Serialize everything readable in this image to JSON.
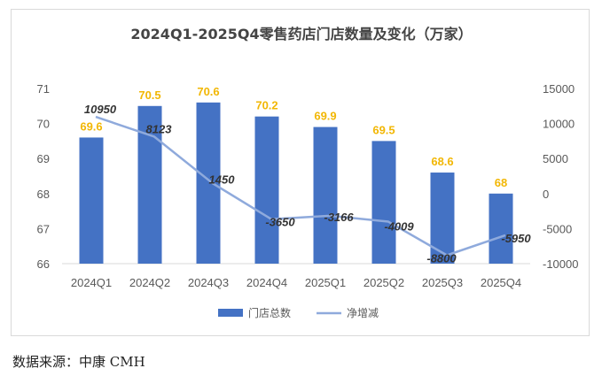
{
  "chart_data": {
    "type": "bar",
    "title": "2024Q1-2025Q4零售药店门店数量及变化（万家）",
    "categories": [
      "2024Q1",
      "2024Q2",
      "2024Q3",
      "2024Q4",
      "2025Q1",
      "2025Q2",
      "2025Q3",
      "2025Q4"
    ],
    "series": [
      {
        "name": "门店总数",
        "type": "bar",
        "axis": "left",
        "color": "#4472c4",
        "values": [
          69.6,
          70.5,
          70.6,
          70.2,
          69.9,
          69.5,
          68.6,
          68
        ]
      },
      {
        "name": "净增减",
        "type": "line",
        "axis": "right",
        "color": "#8faadc",
        "values": [
          10950,
          8123,
          1450,
          -3650,
          -3166,
          -4009,
          -8800,
          -5950
        ]
      }
    ],
    "y_left": {
      "min": 66,
      "max": 71,
      "ticks": [
        66,
        67,
        68,
        69,
        70,
        71
      ]
    },
    "y_right": {
      "min": -10000,
      "max": 15000,
      "ticks": [
        15000,
        10000,
        5000,
        0,
        -5000,
        -10000
      ]
    },
    "legend_position": "bottom",
    "grid": false
  },
  "source_text": "数据来源：中康 CMH"
}
